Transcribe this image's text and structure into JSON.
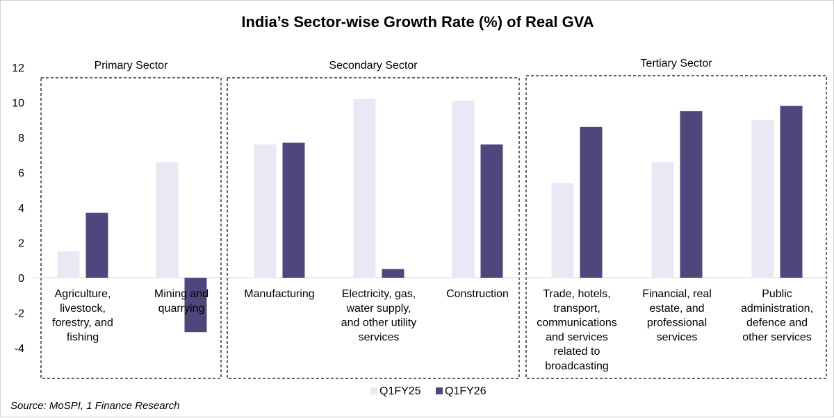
{
  "chart_data": {
    "type": "bar",
    "title": "India’s Sector-wise Growth Rate (%) of Real GVA",
    "xlabel": "",
    "ylabel": "",
    "ylim": [
      -4,
      12
    ],
    "yticks": [
      -4,
      -2,
      0,
      2,
      4,
      6,
      8,
      10,
      12
    ],
    "grid": false,
    "legend_position": "bottom",
    "categories": [
      [
        "Agriculture,",
        "livestock,",
        "forestry, and",
        "fishing"
      ],
      [
        "Mining and",
        "quarrying"
      ],
      [
        "Manufacturing"
      ],
      [
        "Electricity, gas,",
        "water supply,",
        "and other utility",
        "services"
      ],
      [
        "Construction"
      ],
      [
        "Trade, hotels,",
        "transport,",
        "communications",
        "and services",
        "related to",
        "broadcasting"
      ],
      [
        "Financial, real",
        "estate, and",
        "professional",
        "services"
      ],
      [
        "Public",
        "administration,",
        "defence and",
        "other services"
      ]
    ],
    "series": [
      {
        "name": "Q1FY25",
        "color": "#ebe8f5",
        "values": [
          1.5,
          6.6,
          7.6,
          10.2,
          10.1,
          5.4,
          6.6,
          9.0
        ]
      },
      {
        "name": "Q1FY26",
        "color": "#4e477c",
        "values": [
          3.7,
          -3.1,
          7.7,
          0.5,
          7.6,
          8.6,
          9.5,
          9.8
        ]
      }
    ],
    "groups": [
      {
        "label": "Primary Sector",
        "categories": [
          0,
          1
        ]
      },
      {
        "label": "Secondary Sector",
        "categories": [
          2,
          3,
          4
        ]
      },
      {
        "label": "Tertiary Sector",
        "categories": [
          5,
          6,
          7
        ]
      }
    ],
    "source": "Source: MoSPI, 1 Finance Research"
  }
}
